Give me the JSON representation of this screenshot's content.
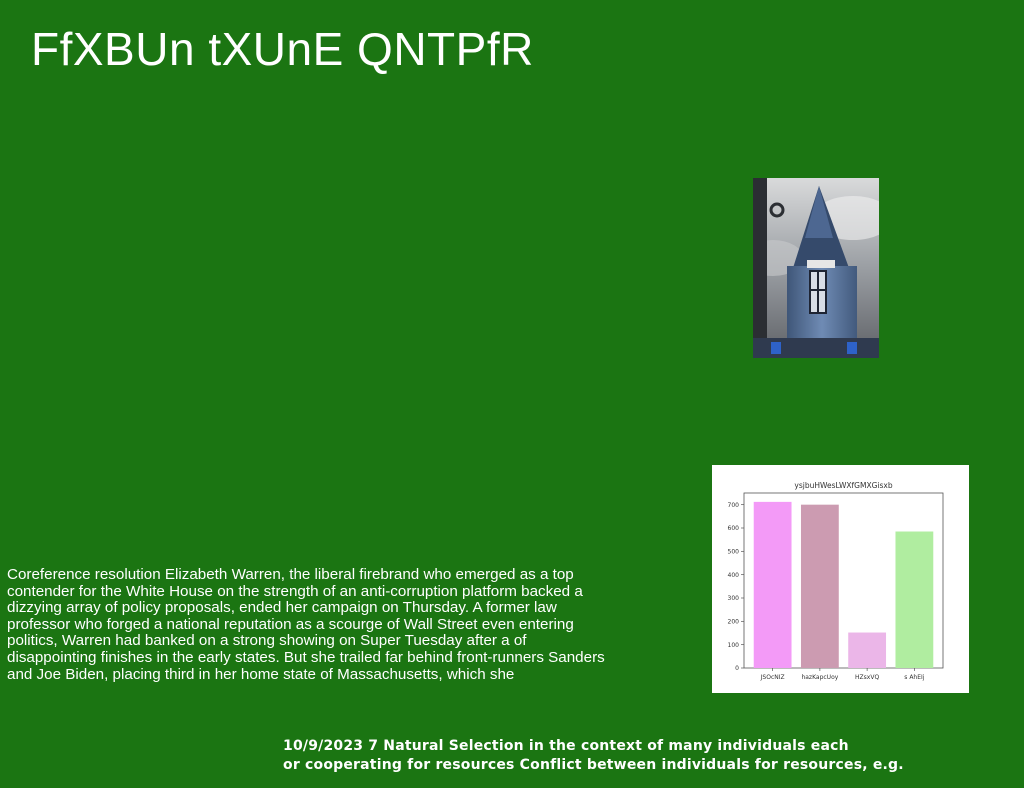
{
  "title": "FfXBUn tXUnE QNTPfR",
  "body_text": "Coreference resolution Elizabeth Warren, the liberal firebrand who emerged as a top contender for the White House on the strength of an anti-corruption platform backed a dizzying array of policy proposals, ended her campaign on Thursday. A former law professor who forged a national reputation as a scourge of Wall Street even entering politics, Warren had banked on a strong showing on Super Tuesday after a of disappointing finishes in the early states. But she trailed far behind front-runners Sanders and Joe Biden, placing third in her home state of Massachusetts, which she",
  "footer": {
    "line1": "10/9/2023 7 Natural Selection in the context of many individuals each",
    "line2": "or cooperating for resources Conflict between individuals for resources, e.g."
  },
  "chart_data": {
    "type": "bar",
    "title": "ysjbuHWesLWXfGMXGisxb",
    "categories": [
      "JSOcNIZ",
      "hazKapcUoy",
      "HZsxVQ",
      "s AhEIj"
    ],
    "values": [
      712,
      700,
      152,
      585
    ],
    "colors": [
      "#f39af7",
      "#cc9bb1",
      "#ebb6e8",
      "#b0eda0"
    ],
    "yticks": [
      0,
      100,
      200,
      300,
      400,
      500,
      600,
      700
    ],
    "ylim": [
      0,
      750
    ]
  }
}
